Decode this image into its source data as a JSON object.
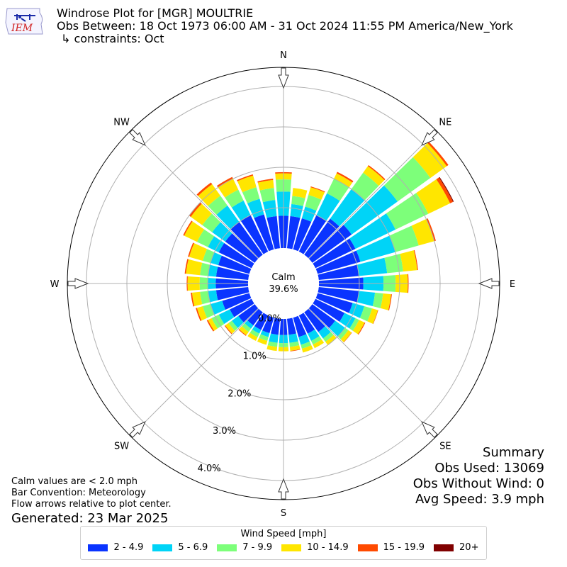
{
  "header": {
    "line1": "Windrose Plot for [MGR] MOULTRIE",
    "line2": "Obs Between: 18 Oct 1973 06:00 AM - 31 Oct 2024 11:55 PM America/New_York",
    "line3": "↳ constraints: Oct"
  },
  "logo": {
    "text": "IEM"
  },
  "notes": {
    "calm_note": "Calm values are < 2.0 mph",
    "bar_convention": "Bar Convention: Meteorology",
    "flow_note": "Flow arrows relative to plot center.",
    "generated": "Generated: 23 Mar 2025"
  },
  "summary": {
    "title": "Summary",
    "obs_used": "Obs Used: 13069",
    "obs_without_wind": "Obs Without Wind: 0",
    "avg_speed": "Avg Speed: 3.9 mph"
  },
  "center": {
    "label": "Calm",
    "value": "39.6%"
  },
  "compass": [
    "N",
    "NE",
    "E",
    "SE",
    "S",
    "SW",
    "W",
    "NW"
  ],
  "legend": {
    "title": "Wind Speed [mph]",
    "items": [
      {
        "label": "2 - 4.9",
        "color": "#0a34ff"
      },
      {
        "label": "5 - 6.9",
        "color": "#00d4f7"
      },
      {
        "label": "7 - 9.9",
        "color": "#7dff7a"
      },
      {
        "label": "10 - 14.9",
        "color": "#ffe600"
      },
      {
        "label": "15 - 19.9",
        "color": "#ff4a00"
      },
      {
        "label": "20+",
        "color": "#800000"
      }
    ]
  },
  "chart_data": {
    "type": "windrose",
    "radial_unit": "%",
    "radial_ticks": [
      "0.0%",
      "1.0%",
      "2.0%",
      "3.0%",
      "4.0%"
    ],
    "radial_max": 4.9,
    "calm_percent": 39.6,
    "direction_bins_deg": [
      0,
      10,
      20,
      30,
      40,
      50,
      60,
      70,
      80,
      90,
      100,
      110,
      120,
      130,
      140,
      150,
      160,
      170,
      180,
      190,
      200,
      210,
      220,
      230,
      240,
      250,
      260,
      270,
      280,
      290,
      300,
      310,
      320,
      330,
      340,
      350
    ],
    "series": [
      {
        "name": "2 - 4.9",
        "values": [
          0.8,
          0.8,
          0.8,
          1.0,
          1.1,
          1.2,
          1.1,
          1.1,
          1.0,
          1.1,
          1.0,
          0.9,
          0.8,
          0.7,
          0.6,
          0.5,
          0.5,
          0.4,
          0.4,
          0.4,
          0.4,
          0.4,
          0.4,
          0.5,
          0.6,
          0.7,
          0.8,
          0.8,
          0.8,
          0.8,
          0.9,
          0.9,
          1.0,
          1.0,
          0.9,
          0.8
        ]
      },
      {
        "name": "5 - 6.9",
        "values": [
          0.6,
          0.3,
          0.3,
          0.6,
          0.9,
          1.4,
          1.1,
          0.9,
          0.7,
          0.5,
          0.4,
          0.3,
          0.3,
          0.3,
          0.2,
          0.2,
          0.2,
          0.2,
          0.2,
          0.2,
          0.1,
          0.1,
          0.1,
          0.2,
          0.3,
          0.3,
          0.2,
          0.2,
          0.2,
          0.2,
          0.3,
          0.4,
          0.5,
          0.4,
          0.4,
          0.4
        ]
      },
      {
        "name": "7 - 9.9",
        "values": [
          0.3,
          0.2,
          0.3,
          0.4,
          0.5,
          1.0,
          0.9,
          0.6,
          0.4,
          0.3,
          0.2,
          0.2,
          0.1,
          0.1,
          0.1,
          0.1,
          0.1,
          0.1,
          0.1,
          0.1,
          0.1,
          0.1,
          0.1,
          0.1,
          0.2,
          0.2,
          0.2,
          0.2,
          0.2,
          0.2,
          0.3,
          0.3,
          0.3,
          0.3,
          0.3,
          0.3
        ]
      },
      {
        "name": "10 - 14.9",
        "values": [
          0.15,
          0.2,
          0.2,
          0.15,
          0.2,
          0.5,
          0.6,
          0.4,
          0.35,
          0.3,
          0.2,
          0.15,
          0.15,
          0.1,
          0.1,
          0.1,
          0.1,
          0.1,
          0.1,
          0.1,
          0.1,
          0.1,
          0.1,
          0.1,
          0.1,
          0.15,
          0.2,
          0.3,
          0.35,
          0.35,
          0.35,
          0.35,
          0.35,
          0.3,
          0.3,
          0.2
        ]
      },
      {
        "name": "15 - 19.9",
        "values": [
          0.03,
          0.0,
          0.02,
          0.04,
          0.03,
          0.05,
          0.08,
          0.04,
          0.02,
          0.02,
          0.02,
          0.01,
          0.02,
          0.01,
          0.0,
          0.0,
          0.0,
          0.01,
          0.0,
          0.0,
          0.0,
          0.0,
          0.02,
          0.02,
          0.03,
          0.03,
          0.03,
          0.02,
          0.03,
          0.03,
          0.03,
          0.05,
          0.05,
          0.05,
          0.03,
          0.03
        ]
      },
      {
        "name": "20+",
        "values": [
          0.0,
          0.0,
          0.0,
          0.0,
          0.0,
          0.0,
          0.02,
          0.0,
          0.0,
          0.0,
          0.0,
          0.0,
          0.0,
          0.0,
          0.0,
          0.0,
          0.0,
          0.0,
          0.0,
          0.0,
          0.0,
          0.0,
          0.0,
          0.0,
          0.0,
          0.0,
          0.0,
          0.0,
          0.0,
          0.0,
          0.0,
          0.0,
          0.0,
          0.0,
          0.0,
          0.0
        ]
      }
    ]
  }
}
